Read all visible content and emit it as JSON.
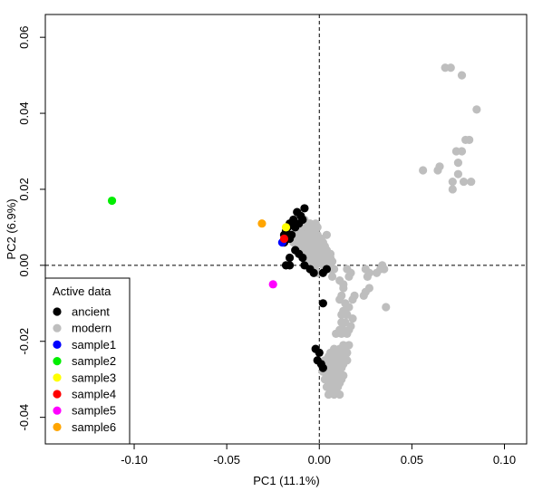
{
  "chart_data": {
    "type": "scatter",
    "xlabel": "PC1 (11.1%)",
    "ylabel": "PC2 (6.9%)",
    "xlim": [
      -0.148,
      0.112
    ],
    "ylim": [
      -0.047,
      0.066
    ],
    "x_ticks": [
      -0.1,
      -0.05,
      0.0,
      0.05,
      0.1
    ],
    "x_tick_labels": [
      "-0.10",
      "-0.05",
      "0.00",
      "0.05",
      "0.10"
    ],
    "y_ticks": [
      -0.04,
      -0.02,
      0.0,
      0.02,
      0.04,
      0.06
    ],
    "y_tick_labels": [
      "-0.04",
      "-0.02",
      "0.00",
      "0.02",
      "0.04",
      "0.06"
    ],
    "reference_lines": {
      "x": 0,
      "y": 0,
      "style": "dashed"
    },
    "grid": false,
    "legend": {
      "title": "Active data",
      "position": "bottom-left",
      "entries": [
        {
          "label": "ancient",
          "color": "#000000"
        },
        {
          "label": "modern",
          "color": "#bebebe"
        },
        {
          "label": "sample1",
          "color": "#0000ff"
        },
        {
          "label": "sample2",
          "color": "#00ee00"
        },
        {
          "label": "sample3",
          "color": "#ffff00"
        },
        {
          "label": "sample4",
          "color": "#ff0000"
        },
        {
          "label": "sample5",
          "color": "#ff00ff"
        },
        {
          "label": "sample6",
          "color": "#ffa500"
        }
      ]
    },
    "series": [
      {
        "name": "modern",
        "color": "#bebebe",
        "points": [
          [
            0.068,
            0.052
          ],
          [
            0.071,
            0.052
          ],
          [
            0.077,
            0.05
          ],
          [
            0.085,
            0.041
          ],
          [
            0.079,
            0.033
          ],
          [
            0.081,
            0.033
          ],
          [
            0.074,
            0.03
          ],
          [
            0.077,
            0.03
          ],
          [
            0.075,
            0.027
          ],
          [
            0.065,
            0.026
          ],
          [
            0.056,
            0.025
          ],
          [
            0.064,
            0.025
          ],
          [
            0.075,
            0.024
          ],
          [
            0.072,
            0.022
          ],
          [
            0.078,
            0.022
          ],
          [
            0.082,
            0.022
          ],
          [
            0.072,
            0.02
          ],
          [
            -0.008,
            0.012
          ],
          [
            -0.005,
            0.011
          ],
          [
            -0.002,
            0.011
          ],
          [
            -0.011,
            0.01
          ],
          [
            -0.007,
            0.01
          ],
          [
            -0.004,
            0.01
          ],
          [
            -0.001,
            0.01
          ],
          [
            -0.013,
            0.009
          ],
          [
            -0.009,
            0.009
          ],
          [
            -0.006,
            0.009
          ],
          [
            -0.003,
            0.009
          ],
          [
            -0.001,
            0.008
          ],
          [
            -0.012,
            0.008
          ],
          [
            -0.008,
            0.008
          ],
          [
            -0.004,
            0.008
          ],
          [
            -0.015,
            0.007
          ],
          [
            -0.011,
            0.007
          ],
          [
            -0.007,
            0.007
          ],
          [
            -0.003,
            0.007
          ],
          [
            0.001,
            0.007
          ],
          [
            0.004,
            0.008
          ],
          [
            -0.014,
            0.006
          ],
          [
            -0.01,
            0.006
          ],
          [
            -0.006,
            0.006
          ],
          [
            -0.002,
            0.006
          ],
          [
            0.002,
            0.006
          ],
          [
            -0.012,
            0.005
          ],
          [
            -0.008,
            0.005
          ],
          [
            -0.004,
            0.005
          ],
          [
            0.0,
            0.005
          ],
          [
            0.003,
            0.005
          ],
          [
            -0.01,
            0.004
          ],
          [
            -0.006,
            0.004
          ],
          [
            -0.002,
            0.004
          ],
          [
            0.001,
            0.004
          ],
          [
            0.004,
            0.004
          ],
          [
            -0.008,
            0.003
          ],
          [
            -0.004,
            0.003
          ],
          [
            0.0,
            0.003
          ],
          [
            0.003,
            0.003
          ],
          [
            0.006,
            0.003
          ],
          [
            -0.006,
            0.002
          ],
          [
            -0.002,
            0.002
          ],
          [
            0.002,
            0.002
          ],
          [
            0.005,
            0.002
          ],
          [
            -0.004,
            0.001
          ],
          [
            0.0,
            0.001
          ],
          [
            0.004,
            0.001
          ],
          [
            0.007,
            0.001
          ],
          [
            -0.002,
            0.0
          ],
          [
            0.002,
            0.0
          ],
          [
            0.005,
            0.0
          ],
          [
            0.003,
            -0.001
          ],
          [
            0.006,
            -0.001
          ],
          [
            -0.001,
            -0.002
          ],
          [
            0.008,
            -0.001
          ],
          [
            0.007,
            -0.003
          ],
          [
            0.004,
            0.002
          ],
          [
            0.006,
            0.002
          ],
          [
            0.015,
            -0.001
          ],
          [
            0.017,
            -0.002
          ],
          [
            0.016,
            -0.003
          ],
          [
            0.011,
            -0.004
          ],
          [
            0.013,
            -0.005
          ],
          [
            0.025,
            -0.001
          ],
          [
            0.027,
            -0.002
          ],
          [
            0.026,
            -0.003
          ],
          [
            0.031,
            -0.002
          ],
          [
            0.033,
            -0.001
          ],
          [
            0.035,
            -0.001
          ],
          [
            0.034,
            0.0
          ],
          [
            0.013,
            -0.006
          ],
          [
            0.012,
            -0.008
          ],
          [
            0.011,
            -0.009
          ],
          [
            0.014,
            -0.01
          ],
          [
            0.016,
            -0.011
          ],
          [
            0.013,
            -0.012
          ],
          [
            0.012,
            -0.013
          ],
          [
            0.015,
            -0.013
          ],
          [
            0.018,
            -0.014
          ],
          [
            0.012,
            -0.015
          ],
          [
            0.014,
            -0.015
          ],
          [
            0.017,
            -0.016
          ],
          [
            0.011,
            -0.017
          ],
          [
            0.013,
            -0.017
          ],
          [
            0.016,
            -0.017
          ],
          [
            0.009,
            -0.018
          ],
          [
            0.012,
            -0.018
          ],
          [
            0.015,
            -0.018
          ],
          [
            0.019,
            -0.008
          ],
          [
            0.018,
            -0.009
          ],
          [
            0.015,
            -0.011
          ],
          [
            0.025,
            -0.007
          ],
          [
            0.027,
            -0.006
          ],
          [
            0.024,
            -0.008
          ],
          [
            0.036,
            -0.011
          ],
          [
            0.013,
            -0.021
          ],
          [
            0.016,
            -0.021
          ],
          [
            0.008,
            -0.022
          ],
          [
            0.011,
            -0.022
          ],
          [
            0.014,
            -0.022
          ],
          [
            0.006,
            -0.023
          ],
          [
            0.009,
            -0.023
          ],
          [
            0.012,
            -0.023
          ],
          [
            0.015,
            -0.023
          ],
          [
            0.005,
            -0.024
          ],
          [
            0.008,
            -0.024
          ],
          [
            0.011,
            -0.024
          ],
          [
            0.014,
            -0.024
          ],
          [
            0.003,
            -0.025
          ],
          [
            0.006,
            -0.025
          ],
          [
            0.009,
            -0.025
          ],
          [
            0.012,
            -0.025
          ],
          [
            0.015,
            -0.025
          ],
          [
            0.004,
            -0.026
          ],
          [
            0.007,
            -0.026
          ],
          [
            0.01,
            -0.026
          ],
          [
            0.013,
            -0.026
          ],
          [
            0.003,
            -0.027
          ],
          [
            0.006,
            -0.027
          ],
          [
            0.009,
            -0.027
          ],
          [
            0.012,
            -0.027
          ],
          [
            0.002,
            -0.028
          ],
          [
            0.005,
            -0.028
          ],
          [
            0.008,
            -0.028
          ],
          [
            0.011,
            -0.028
          ],
          [
            0.004,
            -0.029
          ],
          [
            0.007,
            -0.029
          ],
          [
            0.01,
            -0.029
          ],
          [
            0.013,
            -0.029
          ],
          [
            0.003,
            -0.03
          ],
          [
            0.006,
            -0.03
          ],
          [
            0.009,
            -0.03
          ],
          [
            0.012,
            -0.03
          ],
          [
            0.005,
            -0.031
          ],
          [
            0.008,
            -0.031
          ],
          [
            0.011,
            -0.031
          ],
          [
            0.004,
            -0.032
          ],
          [
            0.007,
            -0.032
          ],
          [
            0.01,
            -0.032
          ],
          [
            0.006,
            -0.033
          ],
          [
            0.009,
            -0.033
          ],
          [
            0.005,
            -0.034
          ],
          [
            0.008,
            -0.034
          ],
          [
            0.011,
            -0.034
          ]
        ]
      },
      {
        "name": "ancient",
        "color": "#000000",
        "points": [
          [
            -0.008,
            0.015
          ],
          [
            -0.012,
            0.014
          ],
          [
            -0.01,
            0.013
          ],
          [
            -0.014,
            0.012
          ],
          [
            -0.009,
            0.012
          ],
          [
            -0.016,
            0.011
          ],
          [
            -0.011,
            0.011
          ],
          [
            -0.017,
            0.01
          ],
          [
            -0.013,
            0.01
          ],
          [
            -0.018,
            0.009
          ],
          [
            -0.015,
            0.008
          ],
          [
            -0.019,
            0.008
          ],
          [
            -0.016,
            0.007
          ],
          [
            -0.019,
            0.006
          ],
          [
            -0.013,
            0.004
          ],
          [
            -0.011,
            0.003
          ],
          [
            -0.016,
            0.002
          ],
          [
            -0.009,
            0.002
          ],
          [
            -0.018,
            0.0
          ],
          [
            -0.016,
            0.0
          ],
          [
            -0.008,
            0.0
          ],
          [
            -0.005,
            -0.001
          ],
          [
            -0.003,
            -0.002
          ],
          [
            0.002,
            -0.002
          ],
          [
            0.004,
            -0.001
          ],
          [
            0.002,
            -0.01
          ],
          [
            -0.002,
            -0.022
          ],
          [
            0.0,
            -0.023
          ],
          [
            -0.001,
            -0.025
          ],
          [
            0.001,
            -0.026
          ],
          [
            0.002,
            -0.027
          ]
        ]
      },
      {
        "name": "sample1",
        "color": "#0000ff",
        "points": [
          [
            -0.02,
            0.006
          ]
        ]
      },
      {
        "name": "sample2",
        "color": "#00ee00",
        "points": [
          [
            -0.112,
            0.017
          ]
        ]
      },
      {
        "name": "sample3",
        "color": "#ffff00",
        "points": [
          [
            -0.018,
            0.01
          ]
        ]
      },
      {
        "name": "sample4",
        "color": "#ff0000",
        "points": [
          [
            -0.019,
            0.007
          ]
        ]
      },
      {
        "name": "sample5",
        "color": "#ff00ff",
        "points": [
          [
            -0.025,
            -0.005
          ]
        ]
      },
      {
        "name": "sample6",
        "color": "#ffa500",
        "points": [
          [
            -0.031,
            0.011
          ]
        ]
      }
    ]
  }
}
